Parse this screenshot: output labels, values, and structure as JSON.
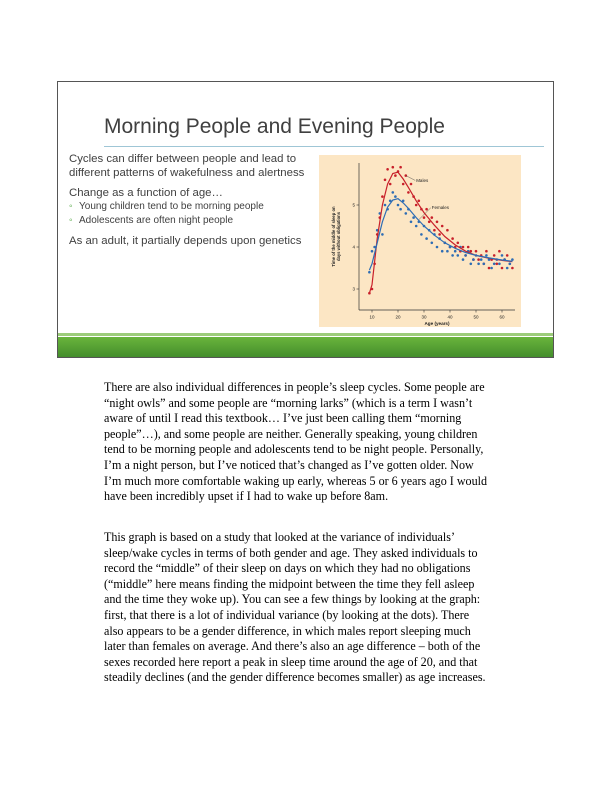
{
  "slide": {
    "title": "Morning People and Evening People",
    "bullets": [
      {
        "level": 1,
        "text": "Cycles can differ between people and lead to different patterns of wakefulness and alertness"
      },
      {
        "level": 1,
        "text": "Change as a function of age…"
      },
      {
        "level": 2,
        "text": "Young children tend to be morning people"
      },
      {
        "level": 2,
        "text": "Adolescents are often night people"
      },
      {
        "level": 1,
        "text": "As an adult, it partially depends upon genetics"
      }
    ]
  },
  "chart_data": {
    "type": "line",
    "xlabel": "Age (years)",
    "ylabel": "Time of the middle of sleep on days without obligations",
    "x_ticks": [
      "10",
      "20",
      "30",
      "40",
      "50",
      "60"
    ],
    "y_ticks": [
      "3",
      "4",
      "5"
    ],
    "xlim": [
      5,
      65
    ],
    "ylim": [
      2.5,
      6.0
    ],
    "series": [
      {
        "name": "Males",
        "color": "#c8202a",
        "x": [
          9,
          10,
          12,
          14,
          16,
          18,
          20,
          22,
          24,
          27,
          30,
          34,
          38,
          42,
          46,
          50,
          55,
          60,
          64
        ],
        "y": [
          2.9,
          3.1,
          4.2,
          5.0,
          5.5,
          5.75,
          5.78,
          5.62,
          5.42,
          5.1,
          4.82,
          4.52,
          4.25,
          4.05,
          3.9,
          3.8,
          3.73,
          3.68,
          3.65
        ]
      },
      {
        "name": "Females",
        "color": "#2e6db4",
        "x": [
          9,
          10,
          12,
          14,
          16,
          18,
          20,
          22,
          24,
          27,
          30,
          34,
          38,
          42,
          46,
          50,
          55,
          60,
          64
        ],
        "y": [
          3.45,
          3.6,
          4.1,
          4.6,
          4.95,
          5.12,
          5.15,
          5.05,
          4.92,
          4.7,
          4.5,
          4.28,
          4.1,
          3.97,
          3.87,
          3.8,
          3.74,
          3.69,
          3.66
        ]
      }
    ],
    "points": [
      {
        "series": "Males",
        "x": [
          9,
          10,
          11,
          12,
          13,
          14,
          15,
          16,
          17,
          18,
          19,
          20,
          21,
          22,
          23,
          24,
          25,
          26,
          27,
          28,
          29,
          30,
          31,
          32,
          33,
          34,
          35,
          36,
          37,
          38,
          39,
          40,
          41,
          42,
          43,
          44,
          45,
          46,
          47,
          48,
          49,
          50,
          51,
          52,
          53,
          54,
          55,
          56,
          57,
          58,
          59,
          60,
          61,
          62,
          63,
          64
        ],
        "y": [
          2.9,
          3.0,
          3.6,
          4.3,
          4.7,
          5.2,
          5.6,
          5.85,
          5.5,
          5.9,
          5.7,
          5.8,
          5.9,
          5.5,
          5.7,
          5.3,
          5.5,
          5.2,
          5.0,
          5.1,
          4.9,
          4.7,
          4.9,
          4.6,
          4.7,
          4.4,
          4.6,
          4.3,
          4.5,
          4.1,
          4.4,
          4.0,
          4.2,
          4.0,
          4.1,
          3.9,
          4.0,
          3.8,
          4.0,
          3.9,
          3.7,
          3.9,
          3.7,
          3.8,
          3.6,
          3.9,
          3.5,
          3.7,
          3.8,
          3.6,
          3.9,
          3.5,
          3.7,
          3.8,
          3.6,
          3.5
        ]
      },
      {
        "series": "Females",
        "x": [
          9,
          10,
          11,
          12,
          13,
          14,
          15,
          16,
          17,
          18,
          19,
          20,
          21,
          22,
          23,
          24,
          25,
          26,
          27,
          28,
          29,
          30,
          31,
          32,
          33,
          34,
          35,
          36,
          37,
          38,
          39,
          40,
          41,
          42,
          43,
          44,
          45,
          46,
          47,
          48,
          49,
          50,
          51,
          52,
          53,
          54,
          55,
          56,
          57,
          58,
          59,
          60,
          61,
          62,
          63,
          64
        ],
        "y": [
          3.4,
          3.9,
          4.0,
          4.4,
          4.8,
          4.3,
          5.0,
          4.9,
          5.1,
          5.3,
          5.2,
          5.0,
          4.9,
          5.1,
          4.8,
          4.9,
          4.6,
          4.7,
          4.5,
          4.6,
          4.3,
          4.5,
          4.2,
          4.4,
          4.1,
          4.3,
          4.0,
          4.2,
          3.9,
          4.1,
          3.9,
          4.0,
          3.8,
          3.9,
          3.8,
          4.0,
          3.7,
          3.8,
          3.9,
          3.6,
          3.7,
          3.8,
          3.6,
          3.7,
          3.6,
          3.8,
          3.7,
          3.5,
          3.6,
          3.7,
          3.6,
          3.8,
          3.7,
          3.5,
          3.6,
          3.7
        ]
      }
    ]
  },
  "body": {
    "paragraphs": [
      [
        "There are also individual differences in people’s sleep cycles. Some people are",
        "“night owls” and some people are “morning larks” (which is a term I wasn’t",
        "aware of until I read this textbook… I’ve just been calling them “morning",
        "people”…), and some people are neither. Generally speaking, young children",
        "tend to be morning people and adolescents tend to be night people. Personally,",
        "I’m a night person, but I’ve noticed that’s changed as I’ve gotten older. Now",
        "I’m much more comfortable waking up early, whereas 5 or 6 years ago I would",
        "have been incredibly upset if I had to wake up before 8am."
      ],
      [
        "This graph is based on a study that looked at the variance of individuals’",
        "sleep/wake cycles in terms of both gender and age. They asked individuals to",
        "record the “middle” of their sleep on days on which they had no obligations",
        "(“middle” here means finding the midpoint between the time they fell asleep",
        "and the time they woke up). You can see a few things by looking at the graph:",
        "first, that there is a lot of individual variance (by looking at the dots). There",
        "also appears to be a gender difference, in which males report sleeping much",
        "later than females on average. And there’s also an age difference – both of the",
        "sexes recorded here report a peak in sleep time around the age of 20, and that",
        "steadily declines (and the gender difference becomes smaller) as age increases."
      ]
    ]
  }
}
